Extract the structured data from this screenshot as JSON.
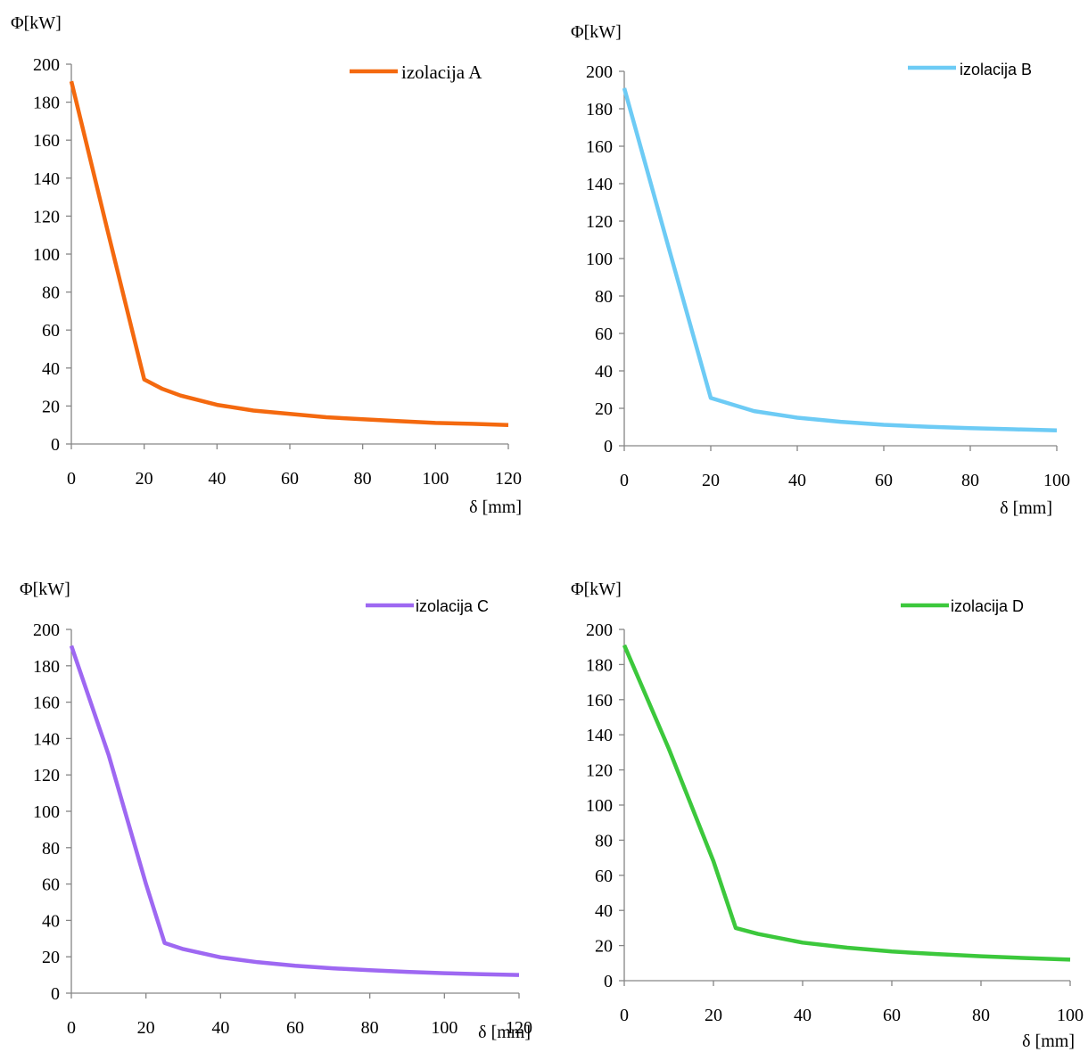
{
  "chart_data": [
    {
      "type": "line",
      "ylabel": "Φ[kW]",
      "xlabel": "δ [mm]",
      "xlim": [
        0,
        120
      ],
      "ylim": [
        0,
        200
      ],
      "xticks": [
        0,
        20,
        40,
        60,
        80,
        100,
        120
      ],
      "yticks": [
        0,
        20,
        40,
        60,
        80,
        100,
        120,
        140,
        160,
        180,
        200
      ],
      "legend_position": "top-right",
      "grid": false,
      "series": [
        {
          "name": "izolacija A",
          "color": "#f4690f",
          "x": [
            0,
            10,
            20,
            25,
            30,
            40,
            50,
            60,
            70,
            80,
            90,
            100,
            110,
            120
          ],
          "y": [
            191,
            112,
            34,
            29,
            25.5,
            20.6,
            17.6,
            15.8,
            14.1,
            13,
            12,
            11.1,
            10.6,
            10
          ]
        }
      ]
    },
    {
      "type": "line",
      "ylabel": "Φ[kW]",
      "xlabel": "δ [mm]",
      "xlim": [
        0,
        100
      ],
      "ylim": [
        0,
        200
      ],
      "xticks": [
        0,
        20,
        40,
        60,
        80,
        100
      ],
      "yticks": [
        0,
        20,
        40,
        60,
        80,
        100,
        120,
        140,
        160,
        180,
        200
      ],
      "legend_position": "top-right",
      "grid": false,
      "series": [
        {
          "name": "izolacija B",
          "color": "#6dcbf5",
          "x": [
            0,
            10,
            20,
            30,
            40,
            50,
            60,
            70,
            80,
            90,
            100
          ],
          "y": [
            191,
            108,
            25.5,
            18.5,
            15,
            12.8,
            11.2,
            10.2,
            9.4,
            8.8,
            8.2
          ]
        }
      ]
    },
    {
      "type": "line",
      "ylabel": "Φ[kW]",
      "xlabel": "δ [mm]",
      "xlim": [
        0,
        120
      ],
      "ylim": [
        0,
        200
      ],
      "xticks": [
        0,
        20,
        40,
        60,
        80,
        100,
        120
      ],
      "yticks": [
        0,
        20,
        40,
        60,
        80,
        100,
        120,
        140,
        160,
        180,
        200
      ],
      "legend_position": "top-right",
      "grid": false,
      "series": [
        {
          "name": "izolacija C",
          "color": "#9e68f2",
          "x": [
            0,
            10,
            20,
            25,
            30,
            40,
            50,
            60,
            70,
            80,
            90,
            100,
            110,
            120
          ],
          "y": [
            191,
            131,
            60,
            27.6,
            24.2,
            19.7,
            17,
            15.1,
            13.7,
            12.6,
            11.7,
            11,
            10.4,
            10
          ]
        }
      ]
    },
    {
      "type": "line",
      "ylabel": "Φ[kW]",
      "xlabel": "δ [mm]",
      "xlim": [
        0,
        100
      ],
      "ylim": [
        0,
        200
      ],
      "xticks": [
        0,
        20,
        40,
        60,
        80,
        100
      ],
      "yticks": [
        0,
        20,
        40,
        60,
        80,
        100,
        120,
        140,
        160,
        180,
        200
      ],
      "legend_position": "top-right",
      "grid": false,
      "series": [
        {
          "name": "izolacija D",
          "color": "#3cc83c",
          "x": [
            0,
            10,
            20,
            25,
            30,
            40,
            50,
            60,
            70,
            80,
            90,
            100
          ],
          "y": [
            191,
            132,
            68,
            30,
            26.6,
            21.7,
            18.8,
            16.6,
            15.2,
            13.9,
            12.9,
            12
          ]
        }
      ]
    }
  ]
}
